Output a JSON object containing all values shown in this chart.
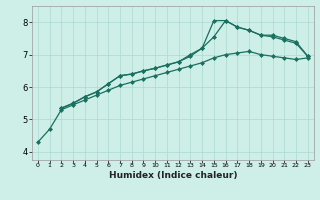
{
  "xlabel": "Humidex (Indice chaleur)",
  "ylabel": "",
  "bg_color": "#ceeee8",
  "line_color": "#1a7060",
  "grid_color": "#acd9d0",
  "xlim": [
    -0.5,
    23.5
  ],
  "ylim": [
    3.75,
    8.5
  ],
  "xticks": [
    0,
    1,
    2,
    3,
    4,
    5,
    6,
    7,
    8,
    9,
    10,
    11,
    12,
    13,
    14,
    15,
    16,
    17,
    18,
    19,
    20,
    21,
    22,
    23
  ],
  "yticks": [
    4,
    5,
    6,
    7,
    8
  ],
  "series": [
    {
      "x": [
        0,
        1,
        2,
        3,
        4,
        5,
        6,
        7,
        8,
        9,
        10,
        11,
        12,
        13,
        14,
        15,
        16,
        17,
        18,
        19,
        20,
        21,
        22,
        23
      ],
      "y": [
        4.3,
        4.7,
        5.3,
        5.45,
        5.6,
        5.75,
        5.9,
        6.05,
        6.15,
        6.25,
        6.35,
        6.45,
        6.55,
        6.65,
        6.75,
        6.9,
        7.0,
        7.05,
        7.1,
        7.0,
        6.95,
        6.9,
        6.85,
        6.9
      ],
      "marker": "D",
      "markersize": 2.0,
      "linewidth": 0.9
    },
    {
      "x": [
        2,
        3,
        4,
        5,
        6,
        7,
        8,
        9,
        10,
        11,
        12,
        13,
        14,
        15,
        16,
        17,
        18,
        19,
        20,
        21,
        22,
        23
      ],
      "y": [
        5.35,
        5.5,
        5.7,
        5.85,
        6.1,
        6.35,
        6.4,
        6.5,
        6.58,
        6.68,
        6.78,
        6.95,
        7.2,
        7.55,
        8.05,
        7.85,
        7.75,
        7.6,
        7.55,
        7.45,
        7.35,
        6.95
      ],
      "marker": "D",
      "markersize": 2.0,
      "linewidth": 0.9
    },
    {
      "x": [
        2,
        3,
        4,
        5,
        6,
        7,
        8,
        9,
        10,
        11,
        12,
        13,
        14,
        15,
        16,
        17,
        18,
        19,
        20,
        21,
        22,
        23
      ],
      "y": [
        5.35,
        5.5,
        5.7,
        5.85,
        6.1,
        6.35,
        6.4,
        6.5,
        6.58,
        6.68,
        6.78,
        7.0,
        7.2,
        8.05,
        8.05,
        7.85,
        7.75,
        7.6,
        7.6,
        7.5,
        7.4,
        6.95
      ],
      "marker": "D",
      "markersize": 2.0,
      "linewidth": 0.9
    }
  ]
}
